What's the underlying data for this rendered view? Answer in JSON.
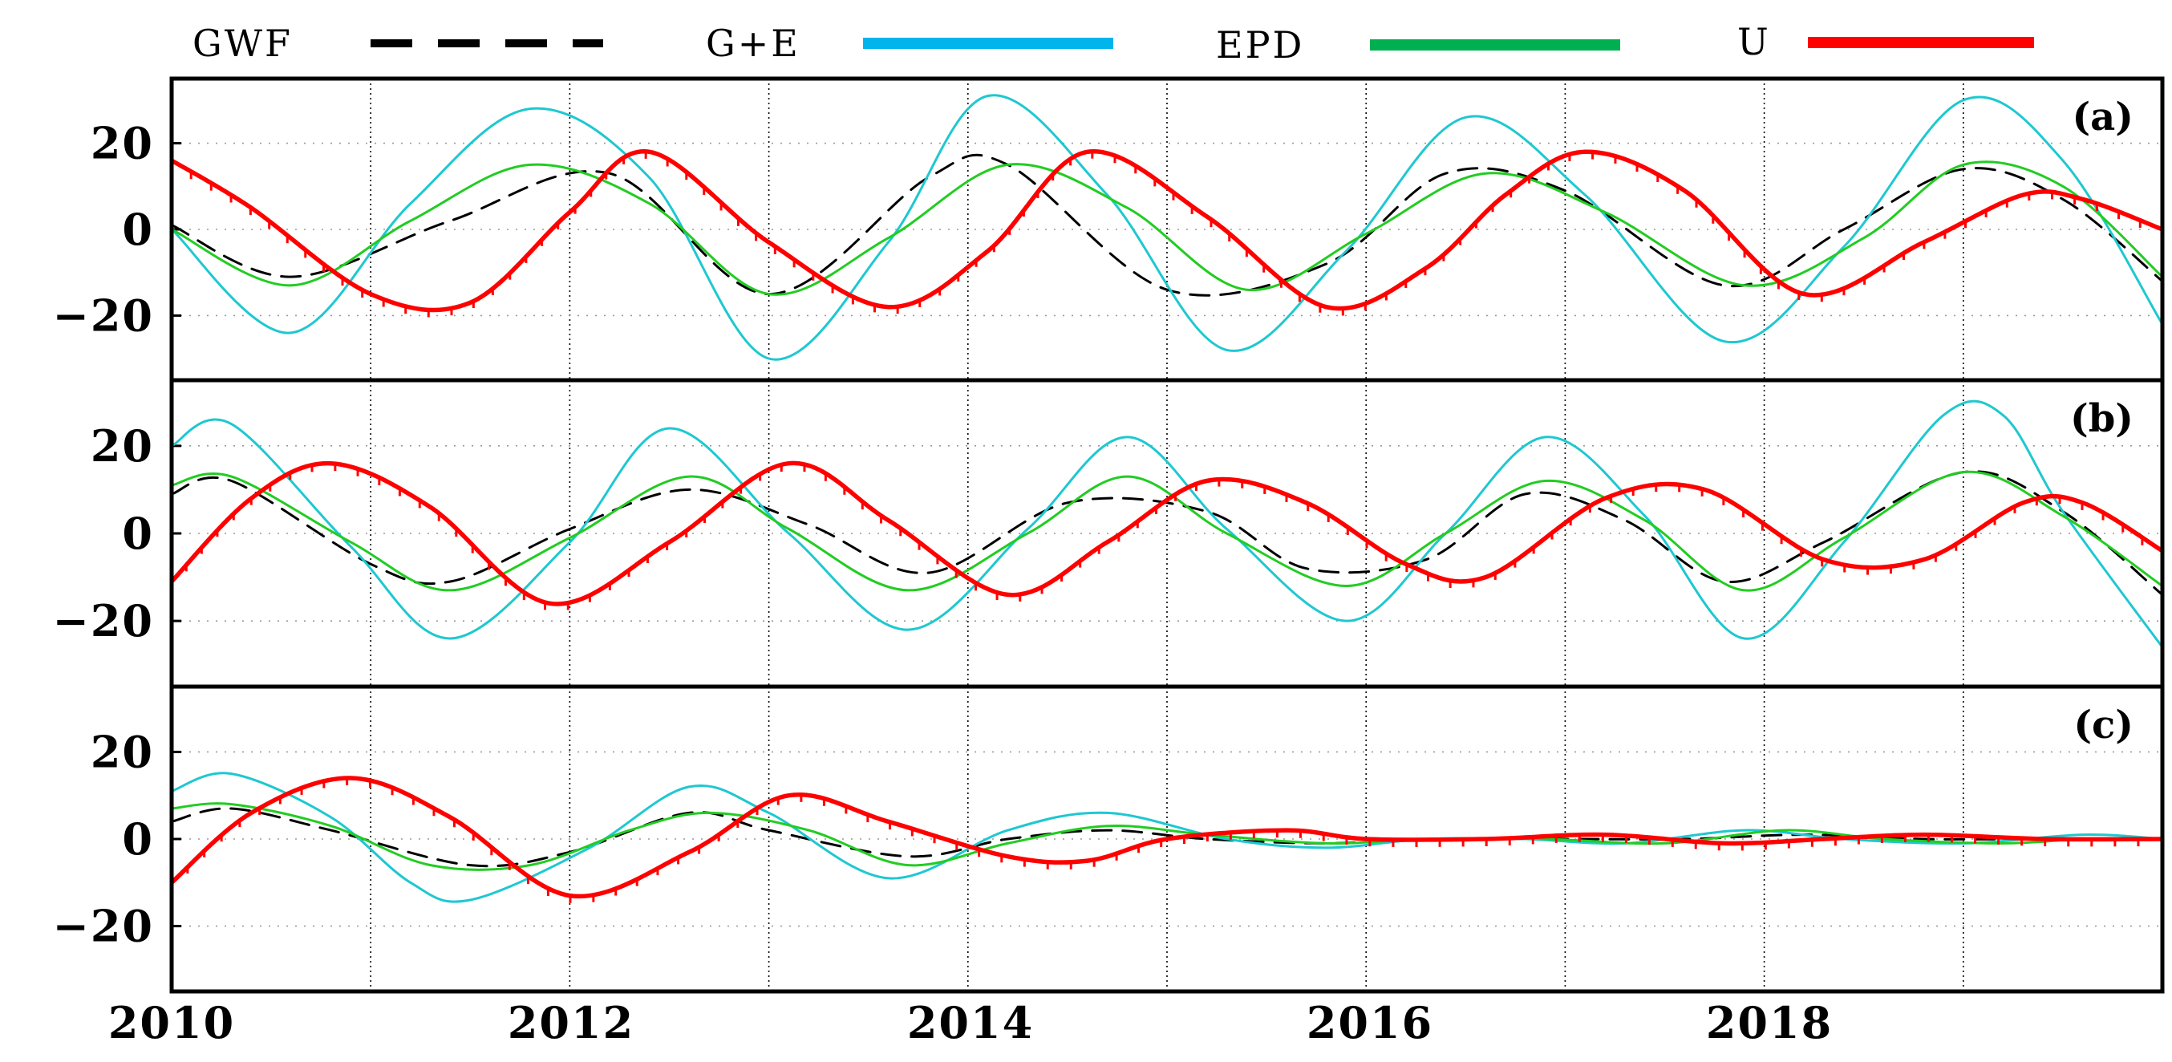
{
  "chart_data": {
    "type": "line",
    "legend": [
      {
        "name": "GWF",
        "color": "#000000",
        "style": "dashed"
      },
      {
        "name": "G+E",
        "color": "#00b4ec",
        "style": "solid"
      },
      {
        "name": "EPD",
        "color": "#00b050",
        "style": "solid"
      },
      {
        "name": "U",
        "color": "#ff0000",
        "style": "solid-ticked"
      }
    ],
    "xlim": [
      2010,
      2020
    ],
    "xticks": [
      2010,
      2012,
      2014,
      2016,
      2018
    ],
    "xtick_labels": [
      "2010",
      "2012",
      "2014",
      "2016",
      "2018"
    ],
    "ylim": [
      -35,
      35
    ],
    "yticks": [
      20,
      0,
      -20
    ],
    "ytick_labels": [
      "20",
      "0",
      "−20"
    ],
    "colors": {
      "GWF": "#000000",
      "G+E": "#1ec8d0",
      "EPD": "#22cc22",
      "U": "#ff0000"
    },
    "panels": [
      {
        "label": "(a)",
        "series": [
          {
            "name": "GWF",
            "x": [
              2010.0,
              2010.6,
              2011.4,
              2012.2,
              2013.0,
              2013.8,
              2014.2,
              2015.0,
              2015.8,
              2016.4,
              2017.0,
              2017.8,
              2018.4,
              2019.0,
              2019.5,
              2020.0
            ],
            "y": [
              1,
              -11,
              2,
              13,
              -15,
              12,
              15,
              -14,
              -8,
              13,
              9,
              -13,
              0,
              14,
              7,
              -12
            ]
          },
          {
            "name": "G+E",
            "x": [
              2010.0,
              2010.6,
              2011.2,
              2011.8,
              2012.4,
              2013.0,
              2013.6,
              2014.1,
              2014.7,
              2015.3,
              2015.9,
              2016.5,
              2017.1,
              2017.8,
              2018.4,
              2019.0,
              2019.5,
              2020.0
            ],
            "y": [
              0,
              -24,
              6,
              28,
              12,
              -30,
              -3,
              31,
              8,
              -28,
              -5,
              26,
              8,
              -26,
              -4,
              30,
              16,
              -22
            ]
          },
          {
            "name": "EPD",
            "x": [
              2010.0,
              2010.6,
              2011.2,
              2011.8,
              2012.4,
              2013.0,
              2013.6,
              2014.2,
              2014.8,
              2015.4,
              2016.0,
              2016.6,
              2017.2,
              2017.9,
              2018.5,
              2019.0,
              2019.5,
              2020.0
            ],
            "y": [
              0,
              -13,
              2,
              15,
              6,
              -15,
              -2,
              15,
              5,
              -14,
              -1,
              13,
              4,
              -13,
              -2,
              15,
              10,
              -11
            ]
          },
          {
            "name": "U",
            "x": [
              2010.0,
              2010.4,
              2011.0,
              2011.5,
              2012.0,
              2012.4,
              2013.0,
              2013.6,
              2014.1,
              2014.6,
              2015.2,
              2015.8,
              2016.3,
              2016.7,
              2017.1,
              2017.6,
              2018.2,
              2018.8,
              2019.3,
              2019.6,
              2020.0
            ],
            "y": [
              16,
              5,
              -15,
              -17,
              4,
              18,
              -3,
              -18,
              -5,
              18,
              3,
              -18,
              -9,
              8,
              18,
              9,
              -15,
              -3,
              8,
              7,
              0
            ]
          }
        ]
      },
      {
        "label": "(b)",
        "series": [
          {
            "name": "GWF",
            "x": [
              2010.0,
              2010.3,
              2011.0,
              2011.4,
              2012.0,
              2012.6,
              2013.2,
              2013.8,
              2014.5,
              2015.2,
              2015.7,
              2016.3,
              2016.8,
              2017.3,
              2017.8,
              2018.3,
              2019.0,
              2019.5,
              2020.0
            ],
            "y": [
              9,
              12,
              -7,
              -11,
              1,
              10,
              2,
              -9,
              7,
              5,
              -8,
              -6,
              9,
              3,
              -11,
              -2,
              14,
              5,
              -14
            ]
          },
          {
            "name": "G+E",
            "x": [
              2010.0,
              2010.3,
              2010.9,
              2011.4,
              2012.0,
              2012.5,
              2013.1,
              2013.7,
              2014.3,
              2014.8,
              2015.3,
              2015.9,
              2016.4,
              2016.9,
              2017.4,
              2017.9,
              2018.4,
              2018.9,
              2019.2,
              2019.5,
              2020.0
            ],
            "y": [
              20,
              25,
              -3,
              -24,
              -2,
              24,
              0,
              -22,
              1,
              22,
              1,
              -20,
              0,
              22,
              4,
              -24,
              -2,
              27,
              27,
              5,
              -26
            ]
          },
          {
            "name": "EPD",
            "x": [
              2010.0,
              2010.3,
              2010.9,
              2011.4,
              2012.0,
              2012.6,
              2013.1,
              2013.7,
              2014.3,
              2014.8,
              2015.3,
              2015.9,
              2016.4,
              2016.9,
              2017.4,
              2017.9,
              2018.4,
              2019.0,
              2019.5,
              2020.0
            ],
            "y": [
              11,
              13,
              -2,
              -13,
              -1,
              13,
              1,
              -13,
              0,
              13,
              0,
              -12,
              0,
              12,
              3,
              -13,
              -1,
              14,
              4,
              -12
            ]
          },
          {
            "name": "U",
            "x": [
              2010.0,
              2010.4,
              2010.8,
              2011.3,
              2011.9,
              2012.5,
              2013.1,
              2013.6,
              2014.2,
              2014.7,
              2015.2,
              2015.7,
              2016.2,
              2016.6,
              2017.2,
              2017.7,
              2018.3,
              2018.8,
              2019.3,
              2019.6,
              2020.0
            ],
            "y": [
              -11,
              8,
              16,
              6,
              -16,
              -2,
              16,
              3,
              -14,
              -2,
              12,
              7,
              -7,
              -10,
              8,
              10,
              -6,
              -6,
              7,
              7,
              -4
            ]
          }
        ]
      },
      {
        "label": "(c)",
        "series": [
          {
            "name": "GWF",
            "x": [
              2010.0,
              2010.3,
              2010.8,
              2011.5,
              2012.0,
              2012.6,
              2013.0,
              2013.7,
              2014.2,
              2014.7,
              2015.2,
              2015.8,
              2016.3,
              2017.0,
              2017.6,
              2018.2,
              2018.8,
              2019.4,
              2020.0
            ],
            "y": [
              4,
              7,
              2,
              -6,
              -3,
              6,
              2,
              -4,
              0,
              2,
              0,
              -1,
              0,
              0,
              0,
              1,
              0,
              0,
              0
            ]
          },
          {
            "name": "G+E",
            "x": [
              2010.0,
              2010.3,
              2010.8,
              2011.2,
              2011.5,
              2012.1,
              2012.6,
              2013.0,
              2013.6,
              2014.2,
              2014.7,
              2015.3,
              2015.8,
              2016.3,
              2016.8,
              2017.3,
              2017.9,
              2018.4,
              2019.0,
              2019.6,
              2020.0
            ],
            "y": [
              11,
              15,
              5,
              -10,
              -14,
              -2,
              12,
              6,
              -9,
              2,
              6,
              0,
              -2,
              0,
              0,
              -1,
              2,
              0,
              -1,
              1,
              0
            ]
          },
          {
            "name": "EPD",
            "x": [
              2010.0,
              2010.3,
              2010.8,
              2011.3,
              2011.8,
              2012.3,
              2012.7,
              2013.2,
              2013.7,
              2014.2,
              2014.7,
              2015.2,
              2015.8,
              2016.3,
              2016.9,
              2017.5,
              2018.1,
              2018.6,
              2019.2,
              2019.6,
              2020.0
            ],
            "y": [
              7,
              8,
              3,
              -6,
              -6,
              2,
              6,
              2,
              -6,
              -1,
              3,
              1,
              -1,
              0,
              0,
              -1,
              2,
              0,
              -1,
              0,
              0
            ]
          },
          {
            "name": "U",
            "x": [
              2010.0,
              2010.4,
              2010.9,
              2011.4,
              2012.0,
              2012.6,
              2013.1,
              2013.6,
              2014.2,
              2014.6,
              2015.0,
              2015.6,
              2016.0,
              2016.6,
              2017.2,
              2017.8,
              2018.3,
              2018.8,
              2019.4,
              2020.0
            ],
            "y": [
              -10,
              6,
              14,
              5,
              -13,
              -3,
              10,
              4,
              -4,
              -5,
              0,
              2,
              0,
              0,
              1,
              -1,
              0,
              1,
              0,
              0
            ]
          }
        ]
      }
    ]
  }
}
